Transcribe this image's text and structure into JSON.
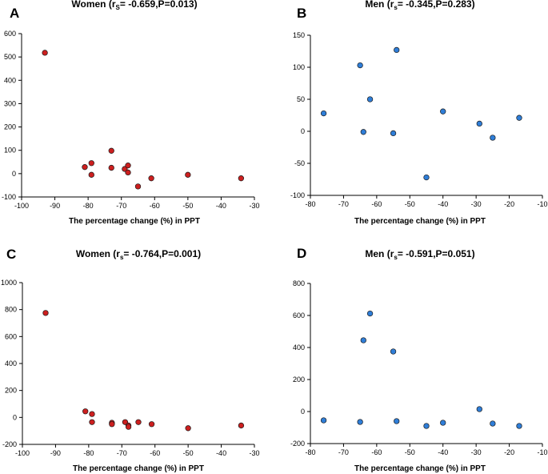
{
  "chart_data": [
    {
      "type": "scatter",
      "panel": "A",
      "title_prefix": "Women (r",
      "title_sub": "S",
      "title_suffix": "= -0.659,P=0.013)",
      "xlabel": "The percentage change (%) in PPT",
      "ylabel": "",
      "xlim": [
        -100,
        -30
      ],
      "ylim": [
        -100,
        600
      ],
      "xticks": [
        -100,
        -90,
        -80,
        -70,
        -60,
        -50,
        -40,
        -30
      ],
      "yticks": [
        -100,
        0,
        100,
        200,
        300,
        400,
        500,
        600
      ],
      "color": "#cc1f1f",
      "x": [
        -93,
        -81,
        -79,
        -79,
        -73,
        -73,
        -69,
        -68,
        -68,
        -65,
        -61,
        -50,
        -34
      ],
      "y": [
        518,
        28,
        45,
        -5,
        98,
        25,
        20,
        35,
        5,
        -55,
        -20,
        -5,
        -20
      ]
    },
    {
      "type": "scatter",
      "panel": "B",
      "title_prefix": "Men (r",
      "title_sub": "s",
      "title_suffix": "= -0.345,P=0.283)",
      "xlabel": "The percentage change (%) in PPT",
      "ylabel": "",
      "xlim": [
        -80,
        -10
      ],
      "ylim": [
        -100,
        150
      ],
      "xticks": [
        -80,
        -70,
        -60,
        -50,
        -40,
        -30,
        -20,
        -10
      ],
      "yticks": [
        -100,
        -50,
        0,
        50,
        100,
        150
      ],
      "color": "#2f7ed8",
      "x": [
        -76,
        -65,
        -64,
        -62,
        -55,
        -54,
        -45,
        -40,
        -29,
        -25,
        -17
      ],
      "y": [
        28,
        103,
        -1,
        50,
        -3,
        127,
        -72,
        31,
        12,
        -10,
        21
      ]
    },
    {
      "type": "scatter",
      "panel": "C",
      "title_prefix": "Women (r",
      "title_sub": "s",
      "title_suffix": "= -0.764,P=0.001)",
      "xlabel": "The percentage change (%) in PPT",
      "ylabel": "",
      "xlim": [
        -100,
        -30
      ],
      "ylim": [
        -200,
        1000
      ],
      "xticks": [
        -100,
        -90,
        -80,
        -70,
        -60,
        -50,
        -40,
        -30
      ],
      "yticks": [
        -200,
        0,
        200,
        400,
        600,
        800,
        1000
      ],
      "color": "#cc1f1f",
      "x": [
        -93,
        -81,
        -79,
        -79,
        -73,
        -73,
        -69,
        -68,
        -68,
        -65,
        -61,
        -50,
        -34
      ],
      "y": [
        775,
        45,
        25,
        -35,
        -40,
        -50,
        -35,
        -60,
        -70,
        -35,
        -50,
        -80,
        -60
      ]
    },
    {
      "type": "scatter",
      "panel": "D",
      "title_prefix": "Men (r",
      "title_sub": "s",
      "title_suffix": "= -0.591,P=0.051)",
      "xlabel": "The percentage change (%) in PPT",
      "ylabel": "",
      "xlim": [
        -80,
        -10
      ],
      "ylim": [
        -200,
        800
      ],
      "xticks": [
        -80,
        -70,
        -60,
        -50,
        -40,
        -30,
        -20,
        -10
      ],
      "yticks": [
        -200,
        0,
        200,
        400,
        600,
        800
      ],
      "color": "#2f7ed8",
      "x": [
        -76,
        -65,
        -64,
        -62,
        -55,
        -54,
        -45,
        -40,
        -29,
        -25,
        -17
      ],
      "y": [
        -55,
        -65,
        445,
        612,
        375,
        -60,
        -90,
        -70,
        15,
        -75,
        -90
      ]
    }
  ]
}
